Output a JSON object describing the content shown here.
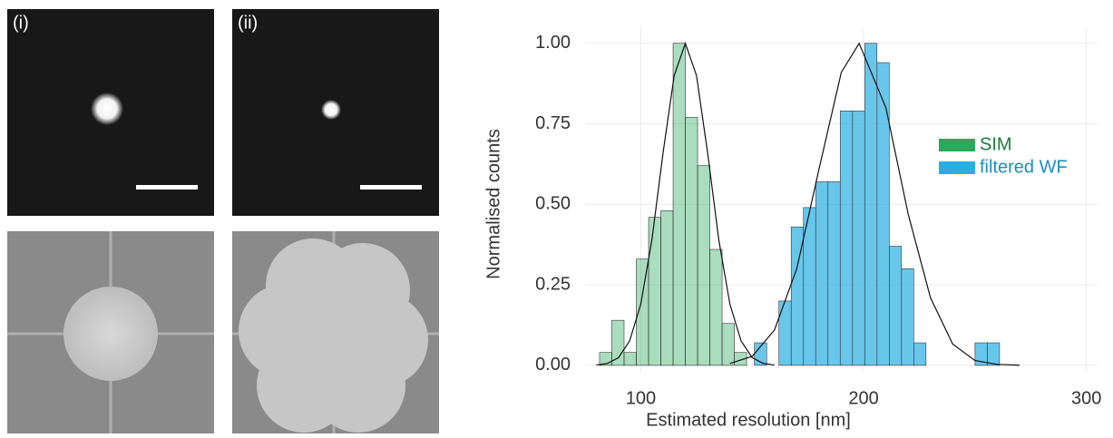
{
  "panels": {
    "labels": [
      "(i)",
      "(ii)"
    ]
  },
  "chart_data": {
    "type": "histogram",
    "xlabel": "Estimated resolution [nm]",
    "ylabel": "Normalised counts",
    "xlim": [
      75,
      305
    ],
    "ylim": [
      -0.02,
      1.05
    ],
    "xticks": [
      100,
      200,
      300
    ],
    "yticks": [
      {
        "value": 0,
        "label": "0.00"
      },
      {
        "value": 0.25,
        "label": "0.25"
      },
      {
        "value": 0.5,
        "label": "0.50"
      },
      {
        "value": 0.75,
        "label": "0.75"
      },
      {
        "value": 1,
        "label": "1.00"
      }
    ],
    "grid": true,
    "legend": "right",
    "series": [
      {
        "name": "SIM",
        "color": "#2aa85c",
        "bins": [
          81.5,
          87,
          92.5,
          98,
          103.5,
          109,
          114.5,
          120,
          125.5,
          131,
          136.5,
          142,
          147.5
        ],
        "values": [
          0.04,
          0.14,
          0.04,
          0.33,
          0.46,
          0.48,
          1.0,
          0.77,
          0.62,
          0.36,
          0.13,
          0.04
        ],
        "fit_x": [
          80,
          85,
          90,
          95,
          100,
          105,
          110,
          115,
          120,
          125,
          130,
          135,
          140,
          145,
          150,
          155,
          160
        ],
        "fit_values": [
          0.001,
          0.006,
          0.024,
          0.076,
          0.19,
          0.39,
          0.66,
          0.9,
          1.0,
          0.9,
          0.66,
          0.39,
          0.19,
          0.076,
          0.024,
          0.006,
          0.001
        ]
      },
      {
        "name": "filtered WF",
        "color": "#2aaee2",
        "bins": [
          151,
          156.5,
          162,
          167.5,
          173,
          178.5,
          184,
          189.5,
          195,
          200.5,
          206,
          211.5,
          217,
          222.5,
          228,
          233.5,
          239,
          244.5,
          250,
          255.5,
          261
        ],
        "values": [
          0.07,
          0,
          0.2,
          0.43,
          0.49,
          0.57,
          0.57,
          0.79,
          0.79,
          1.0,
          0.94,
          0.37,
          0.3,
          0.07,
          0,
          0,
          0,
          0,
          0.07,
          0.07
        ],
        "fit_x": [
          140,
          150,
          160,
          170,
          180,
          190,
          198,
          210,
          220,
          230,
          240,
          250,
          260,
          270
        ],
        "fit_values": [
          0.006,
          0.028,
          0.11,
          0.3,
          0.61,
          0.91,
          1.0,
          0.8,
          0.47,
          0.21,
          0.066,
          0.015,
          0.003,
          0.0005
        ]
      }
    ]
  }
}
